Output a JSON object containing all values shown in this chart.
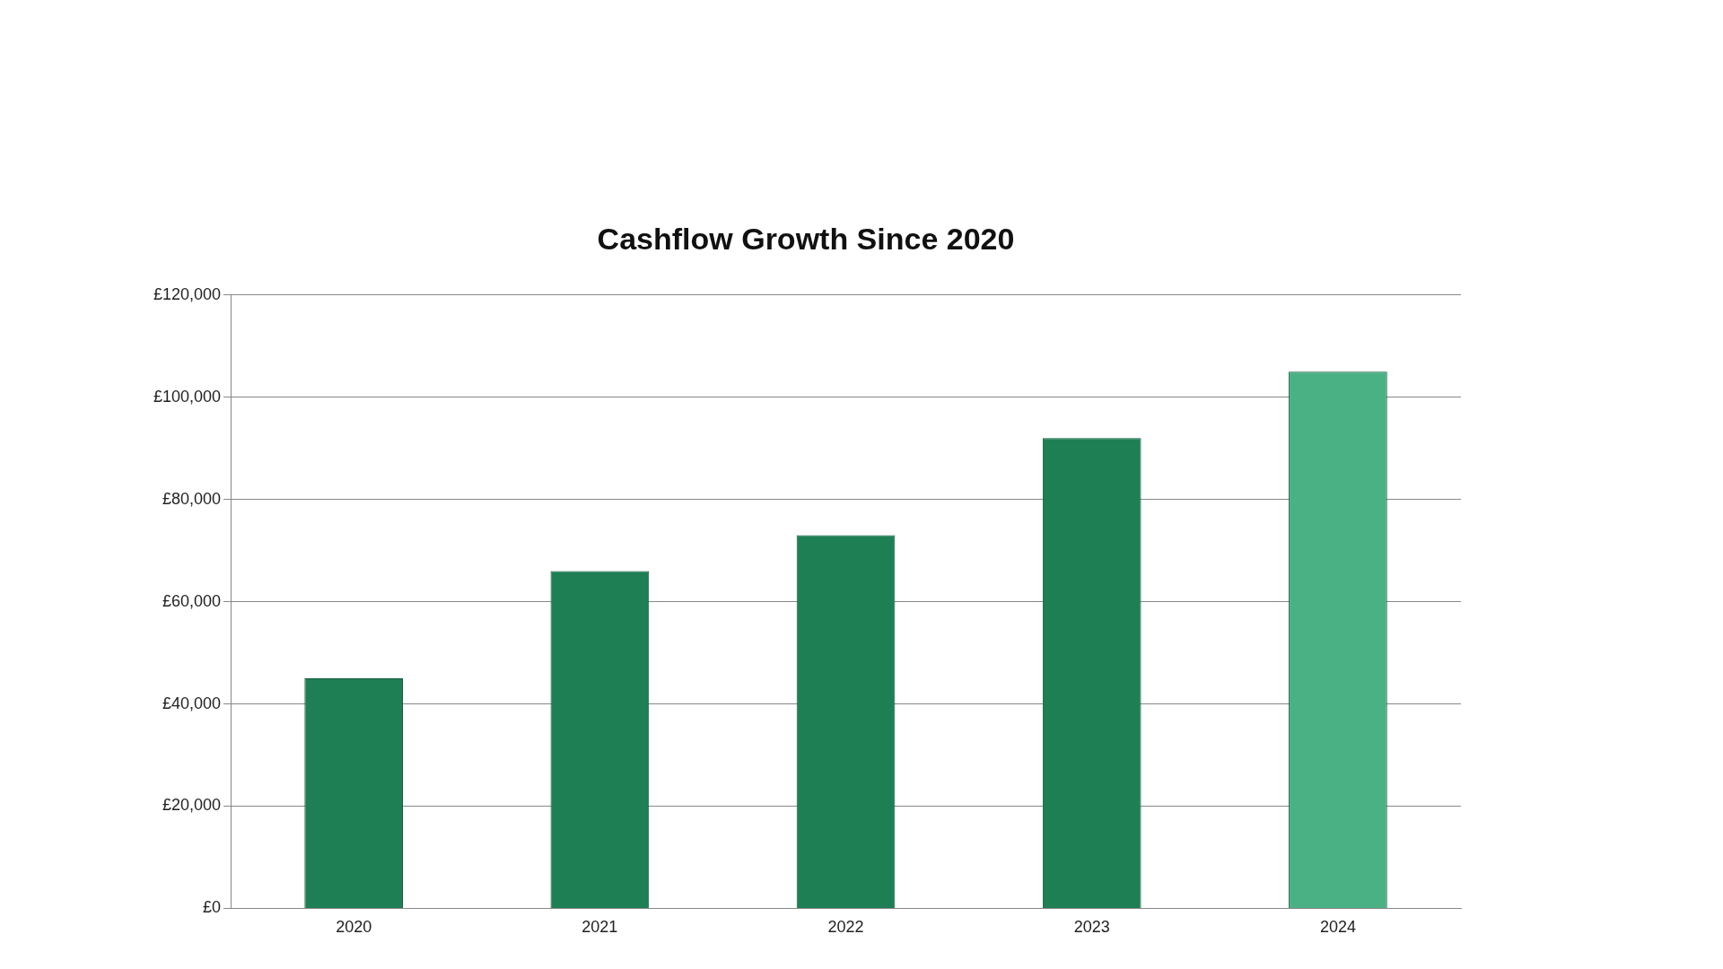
{
  "chart_data": {
    "type": "bar",
    "title": "Cashflow Growth Since 2020",
    "categories": [
      "2020",
      "2021",
      "2022",
      "2023",
      "2024"
    ],
    "values": [
      45000,
      66000,
      73000,
      92000,
      105000
    ],
    "colors": [
      "#1e7f55",
      "#1e7f55",
      "#1e7f55",
      "#1e7f55",
      "#4ab185"
    ],
    "ylim": [
      0,
      120000
    ],
    "yticks": [
      {
        "value": 0,
        "label": "£0"
      },
      {
        "value": 20000,
        "label": "£20,000"
      },
      {
        "value": 40000,
        "label": "£40,000"
      },
      {
        "value": 60000,
        "label": "£60,000"
      },
      {
        "value": 80000,
        "label": "£80,000"
      },
      {
        "value": 100000,
        "label": "£100,000"
      },
      {
        "value": 120000,
        "label": "£120,000"
      }
    ],
    "grid": "y",
    "legend": false
  }
}
